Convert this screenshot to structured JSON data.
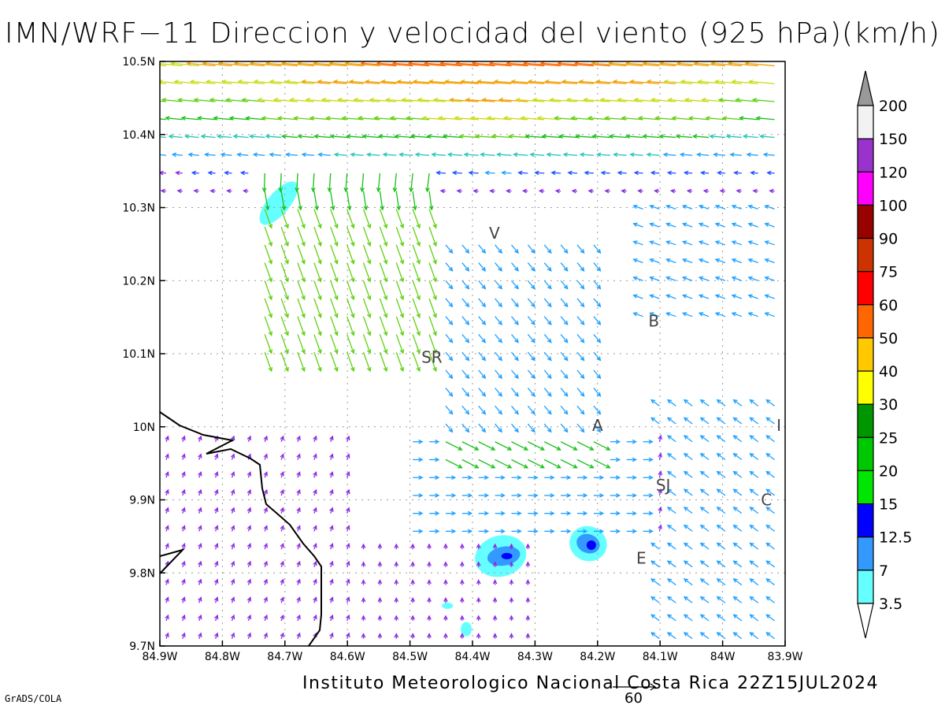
{
  "title": "IMN/WRF−11 Direccion y velocidad del viento (925 hPa)(km/h)",
  "footer": "Instituto Meteorologico Nacional Costa Rica 22Z15JUL2024",
  "software": "GrADS/COLA",
  "reference_vector": "60",
  "x_labels": [
    "84.9W",
    "84.8W",
    "84.7W",
    "84.6W",
    "84.5W",
    "84.4W",
    "84.3W",
    "84.2W",
    "84.1W",
    "84W",
    "83.9W"
  ],
  "y_labels": [
    "10.5N",
    "10.4N",
    "10.3N",
    "10.2N",
    "10.1N",
    "10N",
    "9.9N",
    "9.8N",
    "9.7N"
  ],
  "lon_range": [
    -84.9,
    -83.9
  ],
  "lat_range": [
    9.7,
    10.5
  ],
  "grid": true,
  "places": [
    {
      "label": "V",
      "lon": -84.365,
      "lat": 10.265
    },
    {
      "label": "B",
      "lon": -84.11,
      "lat": 10.145
    },
    {
      "label": "SR",
      "lon": -84.465,
      "lat": 10.095
    },
    {
      "label": "A",
      "lon": -84.2,
      "lat": 10.002
    },
    {
      "label": "I",
      "lon": -83.91,
      "lat": 10.002
    },
    {
      "label": "SJ",
      "lon": -84.095,
      "lat": 9.92
    },
    {
      "label": "C",
      "lon": -83.93,
      "lat": 9.9
    },
    {
      "label": "E",
      "lon": -84.13,
      "lat": 9.82
    }
  ],
  "colorbar": {
    "levels": [
      "3.5",
      "7",
      "12.5",
      "15",
      "20",
      "25",
      "30",
      "40",
      "50",
      "60",
      "75",
      "90",
      "100",
      "120",
      "150",
      "200"
    ],
    "colors": [
      "#ffffff",
      "#66ffff",
      "#3399ff",
      "#0000ff",
      "#00e600",
      "#00c800",
      "#009600",
      "#ffff00",
      "#ffc800",
      "#ff6600",
      "#ff0000",
      "#cc3300",
      "#990000",
      "#ff00ff",
      "#9933cc",
      "#f2f2f2",
      "#999999"
    ]
  },
  "shading": [
    {
      "speed_class": "3.5-7",
      "lon": -84.71,
      "lat": 10.306
    },
    {
      "speed_class": "3.5-7",
      "lon": -84.355,
      "lat": 9.823
    },
    {
      "speed_class": "7-12.5",
      "lon": -84.35,
      "lat": 9.823
    },
    {
      "speed_class": "12.5-15",
      "lon": -84.345,
      "lat": 9.823
    },
    {
      "speed_class": "3.5-7",
      "lon": -84.215,
      "lat": 9.84
    },
    {
      "speed_class": "7-12.5",
      "lon": -84.215,
      "lat": 9.84
    },
    {
      "speed_class": "12.5-15",
      "lon": -84.21,
      "lat": 9.838
    },
    {
      "speed_class": "3.5-7",
      "lon": -84.44,
      "lat": 9.755
    },
    {
      "speed_class": "3.5-7",
      "lon": -84.41,
      "lat": 9.723
    }
  ]
}
